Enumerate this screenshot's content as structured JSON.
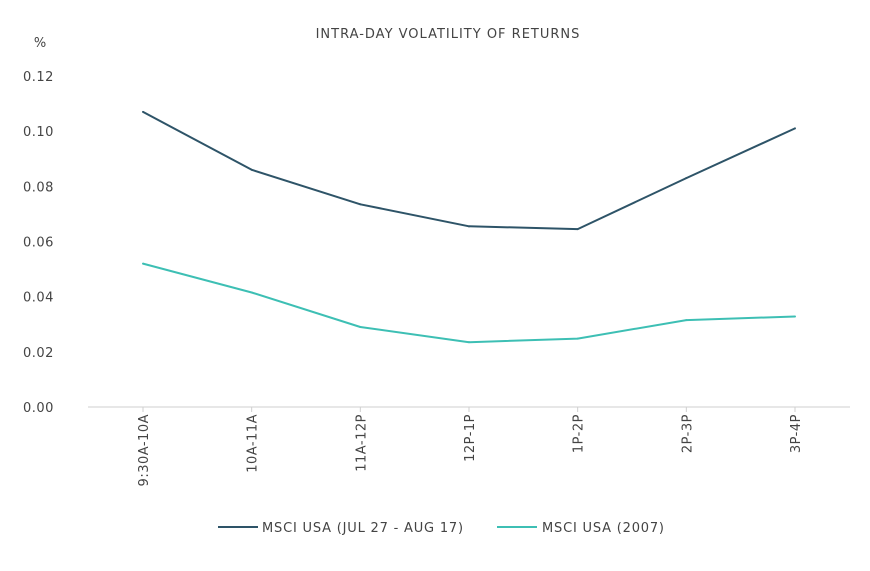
{
  "chart_data": {
    "type": "line",
    "title": "INTRA-DAY VOLATILITY OF RETURNS",
    "ylabel": "%",
    "xlabel": "",
    "categories": [
      "9:30A-10A",
      "10A-11A",
      "11A-12P",
      "12P-1P",
      "1P-2P",
      "2P-3P",
      "3P-4P"
    ],
    "ylim": [
      0,
      0.12
    ],
    "yticks": [
      "0.00",
      "0.02",
      "0.04",
      "0.06",
      "0.08",
      "0.10",
      "0.12"
    ],
    "grid": false,
    "legend_position": "bottom",
    "series": [
      {
        "name": "MSCI USA (JUL 27 - AUG 17)",
        "color": "#2e5468",
        "values": [
          0.107,
          0.086,
          0.0735,
          0.0655,
          0.0645,
          0.083,
          0.101
        ]
      },
      {
        "name": "MSCI USA (2007)",
        "color": "#3dbfb4",
        "values": [
          0.052,
          0.0415,
          0.029,
          0.0235,
          0.0248,
          0.0315,
          0.0328
        ]
      }
    ]
  }
}
